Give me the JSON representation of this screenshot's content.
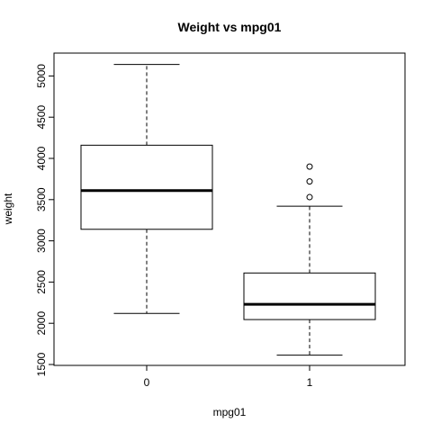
{
  "chart_data": {
    "type": "boxplot",
    "title": "Weight vs mpg01",
    "xlabel": "mpg01",
    "ylabel": "weight",
    "categories": [
      "0",
      "1"
    ],
    "ylim": [
      1500,
      5300
    ],
    "yticks": [
      1500,
      2000,
      2500,
      3000,
      3500,
      4000,
      4500,
      5000
    ],
    "grid": false,
    "boxes": [
      {
        "category": "0",
        "whisker_low": 2120,
        "q1": 3140,
        "median": 3610,
        "q3": 4160,
        "whisker_high": 5140,
        "outliers": []
      },
      {
        "category": "1",
        "whisker_low": 1613,
        "q1": 2045,
        "median": 2230,
        "q3": 2610,
        "whisker_high": 3420,
        "outliers": [
          3530,
          3720,
          3900
        ]
      }
    ]
  }
}
